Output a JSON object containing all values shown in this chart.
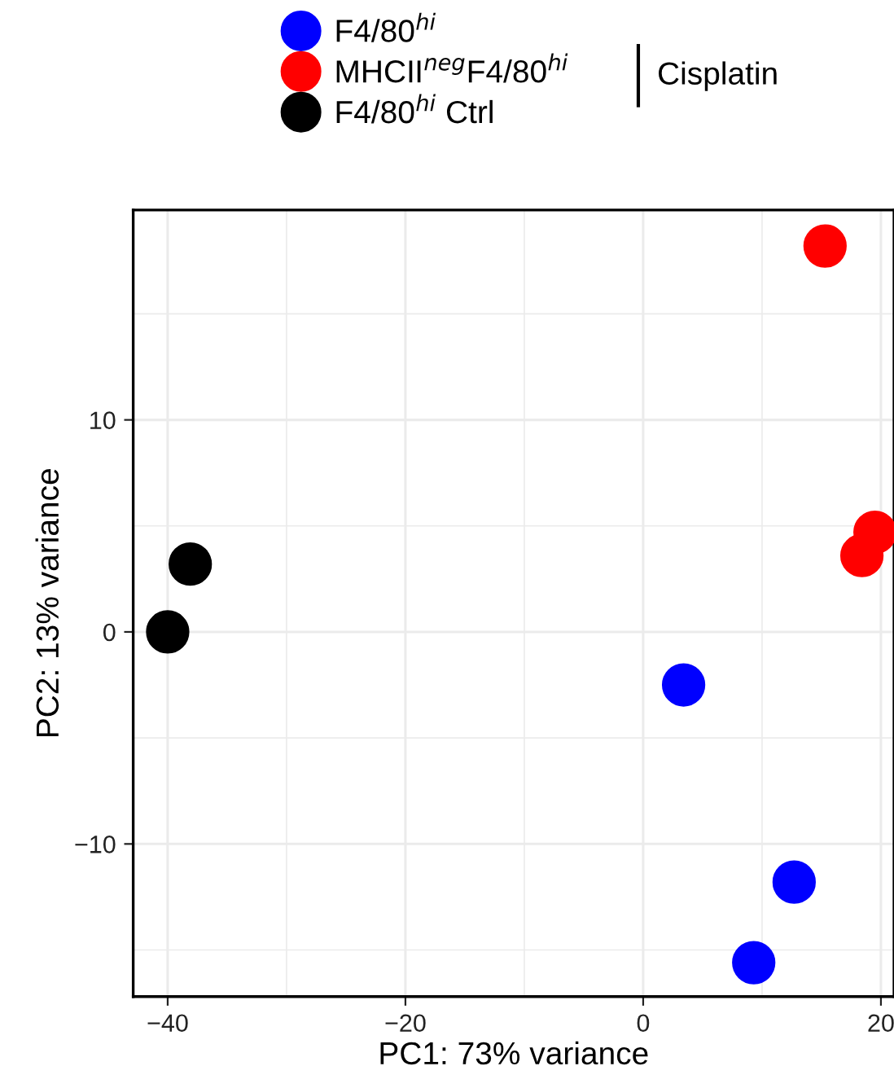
{
  "chart_data": {
    "type": "scatter",
    "xlabel": "PC1: 73% variance",
    "ylabel": "PC2: 13% variance",
    "xlim": [
      -42.9,
      21.1
    ],
    "ylim": [
      -17.2,
      19.9
    ],
    "xticks": [
      -40,
      -20,
      0,
      20
    ],
    "yticks": [
      -10,
      0,
      10
    ],
    "grid": true,
    "legend": "top",
    "marker": "circle",
    "annotations": [
      "Cisplatin"
    ],
    "series": [
      {
        "name": "F4/80$^{hi}$",
        "color": "#0000ff",
        "x": [
          3.4,
          12.7,
          9.3
        ],
        "values": [
          -2.5,
          -11.8,
          -15.6
        ]
      },
      {
        "name": "MHCII$^{neg}$F4/80$^{hi}$",
        "color": "#ff0000",
        "x": [
          15.3,
          18.4,
          19.5
        ],
        "values": [
          18.2,
          3.6,
          4.7
        ]
      },
      {
        "name": "F4/80$^{hi}$ Ctrl",
        "color": "#000000",
        "x": [
          -40,
          -38.1
        ],
        "values": [
          0,
          3.2
        ]
      }
    ]
  }
}
